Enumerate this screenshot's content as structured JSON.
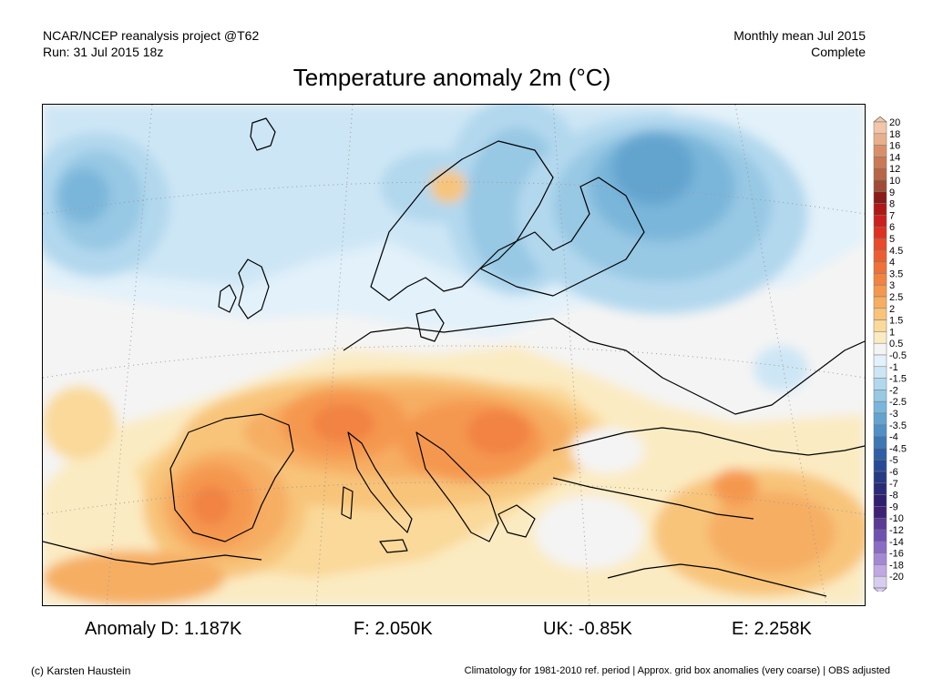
{
  "header": {
    "line1_left": "NCAR/NCEP reanalysis project @T62",
    "line2_left": "Run: 31 Jul 2015 18z",
    "line1_right": "Monthly mean Jul 2015",
    "line2_right": "Complete"
  },
  "title": "Temperature anomaly 2m (°C)",
  "legend": {
    "labels": [
      "20",
      "18",
      "16",
      "14",
      "12",
      "10",
      "9",
      "8",
      "7",
      "6",
      "5",
      "4.5",
      "4",
      "3.5",
      "3",
      "2.5",
      "2",
      "1.5",
      "1",
      "0.5",
      "-0.5",
      "-1",
      "-1.5",
      "-2",
      "-2.5",
      "-3",
      "-3.5",
      "-4",
      "-4.5",
      "-5",
      "-6",
      "-7",
      "-8",
      "-9",
      "-10",
      "-12",
      "-14",
      "-16",
      "-18",
      "-20"
    ],
    "colors": [
      "#f2c6a8",
      "#e8b08c",
      "#d9906a",
      "#c97a55",
      "#b86448",
      "#a04b36",
      "#8b1a1a",
      "#b01818",
      "#cc1f1f",
      "#de3020",
      "#e84a2a",
      "#ec5e32",
      "#ef7038",
      "#f28343",
      "#f5984f",
      "#f6ae63",
      "#f8c47a",
      "#fad99a",
      "#fbebc2",
      "#f4f4f4",
      "#e2f1fa",
      "#cde6f5",
      "#b2d8ee",
      "#97c8e4",
      "#7ab6da",
      "#63a4cf",
      "#5090c4",
      "#3d77b6",
      "#2f60a5",
      "#284a96",
      "#263a86",
      "#2a2c78",
      "#302070",
      "#3d2275",
      "#5a3a95",
      "#7050b0",
      "#8a6cc4",
      "#a488d4",
      "#c0a8e2",
      "#d8cdf0"
    ]
  },
  "stats": {
    "d": "Anomaly D: 1.187K",
    "f": "F: 2.050K",
    "uk": "UK: -0.85K",
    "e": "E: 2.258K"
  },
  "footer": {
    "copyright": "(c) Karsten Haustein",
    "note": "Climatology for 1981-2010 ref. period | Approx. grid box anomalies (very coarse) | OBS adjusted"
  }
}
